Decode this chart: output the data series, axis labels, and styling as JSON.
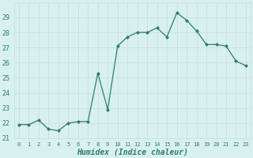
{
  "x": [
    0,
    1,
    2,
    3,
    4,
    5,
    6,
    7,
    8,
    9,
    10,
    11,
    12,
    13,
    14,
    15,
    16,
    17,
    18,
    19,
    20,
    21,
    22,
    23
  ],
  "y": [
    21.9,
    21.9,
    22.2,
    21.6,
    21.5,
    22.0,
    22.1,
    22.1,
    25.3,
    22.9,
    27.1,
    27.7,
    28.0,
    28.0,
    28.3,
    27.7,
    29.3,
    28.8,
    28.1,
    27.2,
    27.2,
    27.1,
    26.1,
    25.8
  ],
  "xlabel": "Humidex (Indice chaleur)",
  "ylabel": "",
  "ylim": [
    21,
    30
  ],
  "xlim": [
    -0.5,
    23.5
  ],
  "yticks": [
    21,
    22,
    23,
    24,
    25,
    26,
    27,
    28,
    29
  ],
  "xticks": [
    0,
    1,
    2,
    3,
    4,
    5,
    6,
    7,
    8,
    9,
    10,
    11,
    12,
    13,
    14,
    15,
    16,
    17,
    18,
    19,
    20,
    21,
    22,
    23
  ],
  "line_color": "#2e7d6e",
  "marker_color": "#2e7d6e",
  "bg_color": "#d8f0f0",
  "grid_color": "#c8e0dc",
  "tick_label_color": "#2e7d6e",
  "xlabel_color": "#2e7d6e",
  "fig_bg_color": "#d8f0f0"
}
